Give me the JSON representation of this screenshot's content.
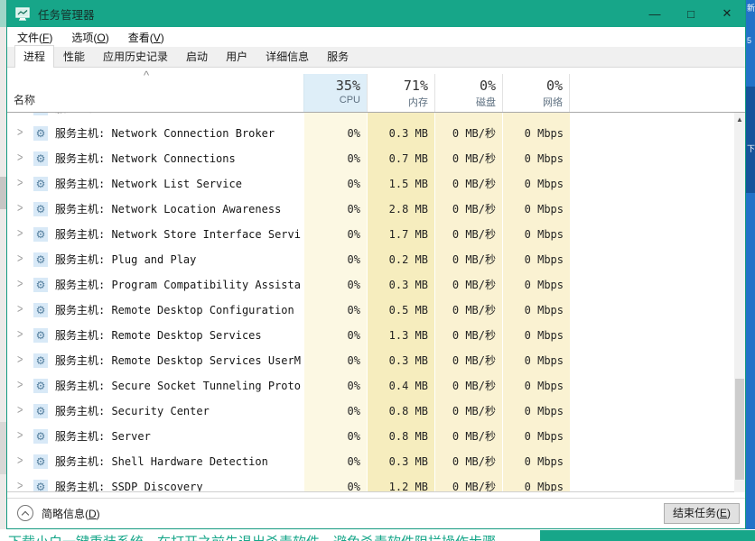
{
  "window": {
    "title": "任务管理器",
    "controls": {
      "minimize": "—",
      "maximize": "□",
      "close": "✕"
    }
  },
  "menu": {
    "items": [
      {
        "pre": "文件(",
        "key": "F",
        "post": ")"
      },
      {
        "pre": "选项(",
        "key": "O",
        "post": ")"
      },
      {
        "pre": "查看(",
        "key": "V",
        "post": ")"
      }
    ]
  },
  "tabs": [
    {
      "label": "进程",
      "active": true
    },
    {
      "label": "性能",
      "active": false
    },
    {
      "label": "应用历史记录",
      "active": false
    },
    {
      "label": "启动",
      "active": false
    },
    {
      "label": "用户",
      "active": false
    },
    {
      "label": "详细信息",
      "active": false
    },
    {
      "label": "服务",
      "active": false
    }
  ],
  "header": {
    "name_label": "名称",
    "sort_caret": "^",
    "stats": [
      {
        "pct": "35%",
        "label": "CPU"
      },
      {
        "pct": "71%",
        "label": "内存"
      },
      {
        "pct": "0%",
        "label": "磁盘"
      },
      {
        "pct": "0%",
        "label": "网络"
      }
    ]
  },
  "rows": [
    {
      "name": "服务主机:",
      "cpu": "",
      "mem": "",
      "disk": "",
      "net": ""
    },
    {
      "name": "服务主机: Network Connection Broker",
      "cpu": "0%",
      "mem": "0.3 MB",
      "disk": "0 MB/秒",
      "net": "0 Mbps"
    },
    {
      "name": "服务主机: Network Connections",
      "cpu": "0%",
      "mem": "0.7 MB",
      "disk": "0 MB/秒",
      "net": "0 Mbps"
    },
    {
      "name": "服务主机: Network List Service",
      "cpu": "0%",
      "mem": "1.5 MB",
      "disk": "0 MB/秒",
      "net": "0 Mbps"
    },
    {
      "name": "服务主机: Network Location Awareness",
      "cpu": "0%",
      "mem": "2.8 MB",
      "disk": "0 MB/秒",
      "net": "0 Mbps"
    },
    {
      "name": "服务主机: Network Store Interface Service",
      "cpu": "0%",
      "mem": "1.7 MB",
      "disk": "0 MB/秒",
      "net": "0 Mbps"
    },
    {
      "name": "服务主机: Plug and Play",
      "cpu": "0%",
      "mem": "0.2 MB",
      "disk": "0 MB/秒",
      "net": "0 Mbps"
    },
    {
      "name": "服务主机: Program Compatibility Assistant...",
      "cpu": "0%",
      "mem": "0.3 MB",
      "disk": "0 MB/秒",
      "net": "0 Mbps"
    },
    {
      "name": "服务主机: Remote Desktop Configuration",
      "cpu": "0%",
      "mem": "0.5 MB",
      "disk": "0 MB/秒",
      "net": "0 Mbps"
    },
    {
      "name": "服务主机: Remote Desktop Services",
      "cpu": "0%",
      "mem": "1.3 MB",
      "disk": "0 MB/秒",
      "net": "0 Mbps"
    },
    {
      "name": "服务主机: Remote Desktop Services UserMod...",
      "cpu": "0%",
      "mem": "0.3 MB",
      "disk": "0 MB/秒",
      "net": "0 Mbps"
    },
    {
      "name": "服务主机: Secure Socket Tunneling Protoco...",
      "cpu": "0%",
      "mem": "0.4 MB",
      "disk": "0 MB/秒",
      "net": "0 Mbps"
    },
    {
      "name": "服务主机: Security Center",
      "cpu": "0%",
      "mem": "0.8 MB",
      "disk": "0 MB/秒",
      "net": "0 Mbps"
    },
    {
      "name": "服务主机: Server",
      "cpu": "0%",
      "mem": "0.8 MB",
      "disk": "0 MB/秒",
      "net": "0 Mbps"
    },
    {
      "name": "服务主机: Shell Hardware Detection",
      "cpu": "0%",
      "mem": "0.3 MB",
      "disk": "0 MB/秒",
      "net": "0 Mbps"
    },
    {
      "name": "服务主机: SSDP Discovery",
      "cpu": "0%",
      "mem": "1.2 MB",
      "disk": "0 MB/秒",
      "net": "0 Mbps"
    }
  ],
  "footer": {
    "toggle": {
      "pre": "简略信息(",
      "key": "D",
      "post": ")"
    },
    "end_task": {
      "pre": "结束任务(",
      "key": "E",
      "post": ")"
    }
  },
  "background": {
    "bottom_text": "下载小白一键重装系统，在打开之前先退出杀毒软件，避免杀毒软件阻拦操作步骤",
    "right_chars": [
      "新",
      "5",
      "下"
    ]
  },
  "colors": {
    "titlebar": "#17a689",
    "accent_teal": "#17a689",
    "heat_cpu": "#fcf8e3",
    "heat_mem": "#f6edbe",
    "heat_low": "#faf2d2",
    "header_cpu_bg": "#deeef8",
    "bg_blue": "#2272c8"
  }
}
